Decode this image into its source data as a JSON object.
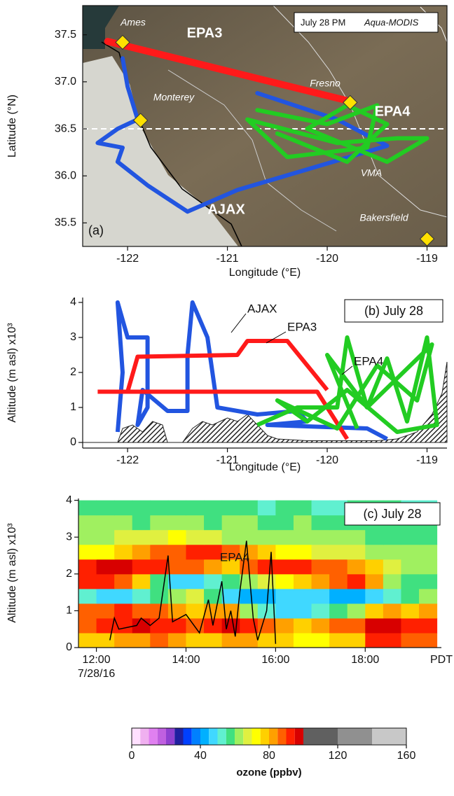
{
  "chart_data": [
    {
      "type": "map",
      "caption": [
        "July 28 PM",
        "Aqua-MODIS"
      ],
      "panel_label": "(a)",
      "xlabel": "Longitude (°E)",
      "ylabel": "Latitude (°N)",
      "xlim": [
        -122.45,
        -118.8
      ],
      "ylim": [
        35.25,
        37.81
      ],
      "xticks": [
        -122,
        -121,
        -120,
        -119
      ],
      "yticks": [
        35.5,
        {
          "value": 36,
          "label": "36.0"
        },
        36.5,
        {
          "value": 37,
          "label": "37.0"
        },
        37.5
      ],
      "reference_lat": 36.5,
      "sites": {
        "names": [
          "Ames",
          "Monterey",
          "Fresno",
          "VMA",
          "Bakersfield"
        ],
        "x": [
          -122.05,
          -121.87,
          -119.77,
          null,
          -119.0
        ],
        "values": [
          37.42,
          36.59,
          36.78,
          null,
          35.33
        ],
        "color": "#ffe000"
      },
      "series": [
        {
          "name": "EPA3",
          "color": "#ff1a1a",
          "x": [
            -122.2,
            -119.8
          ],
          "values": [
            37.43,
            36.8
          ]
        },
        {
          "name": "AJAX",
          "color": "#2255e0",
          "x": [
            -122.05,
            -122.0,
            -121.9,
            -122.1,
            -122.3,
            -122.05,
            -122.1,
            -121.8,
            -121.4,
            -120.9,
            -120.1,
            -119.4,
            -119.9,
            -120.7
          ],
          "values": [
            37.25,
            36.95,
            36.6,
            36.5,
            36.35,
            36.3,
            36.15,
            35.9,
            35.62,
            35.85,
            36.1,
            36.32,
            36.6,
            36.88
          ]
        },
        {
          "name": "EPA4",
          "color": "#22cc22",
          "x": [
            -120.7,
            -120.0,
            -119.5,
            -119.6,
            -120.4,
            -120.8,
            -119.9,
            -119.3,
            -119.0,
            -119.4,
            -120.2,
            -119.8,
            -119.4,
            -119.8,
            -120.5
          ],
          "values": [
            36.7,
            36.55,
            36.75,
            36.3,
            36.2,
            36.6,
            36.35,
            36.4,
            36.4,
            36.15,
            36.5,
            36.75,
            36.55,
            36.15,
            36.45
          ]
        }
      ]
    },
    {
      "type": "line",
      "panel_label": "(b) July 28",
      "xlabel": "Longitude (°E)",
      "ylabel": "Altitude (m asl) x10³",
      "xlim": [
        -122.45,
        -118.8
      ],
      "ylim": [
        -0.16,
        4.14
      ],
      "xticks": [
        -122,
        -121,
        -120,
        -119
      ],
      "yticks": [
        0,
        1,
        2,
        3,
        4
      ],
      "series": [
        {
          "name": "AJAX",
          "color": "#2255e0",
          "x": [
            -122.1,
            -122.05,
            -122.1,
            -122.0,
            -121.8,
            -121.8,
            -121.9,
            -121.85,
            -121.6,
            -121.4,
            -121.4,
            -121.35,
            -121.2,
            -121.1,
            -120.7,
            -120.3,
            -120.2,
            -120.6,
            -119.6,
            -119.4
          ],
          "values": [
            0.3,
            2,
            4,
            3,
            3,
            1,
            0.5,
            1.5,
            0.9,
            0.9,
            2.5,
            4,
            3,
            1,
            0.8,
            0.9,
            0.6,
            0.5,
            0.4,
            0.1
          ]
        },
        {
          "name": "EPA3",
          "color": "#ff1a1a",
          "x": [
            -120.0,
            -120.4,
            -120.8,
            -120.9,
            -121.9,
            -122.0,
            null,
            -122.3,
            -120.1,
            -119.8
          ],
          "values": [
            1.5,
            2.9,
            2.9,
            2.5,
            2.45,
            1.45,
            null,
            1.45,
            1.45,
            0.1
          ]
        },
        {
          "name": "EPA4",
          "color": "#22cc22",
          "x": [
            -120.7,
            -120.3,
            -119.9,
            -119.8,
            -119.6,
            -119.4,
            -119.2,
            -119.0,
            -118.9,
            -119.3,
            -119.8,
            -120.2,
            -120.5,
            -119.9,
            -119.5,
            -119.1,
            -118.95,
            -119.6,
            -120.0,
            -119.7
          ],
          "values": [
            0.5,
            1,
            1,
            3,
            1,
            2.4,
            0.6,
            3,
            0.5,
            0.3,
            1.5,
            0.6,
            1.2,
            0.4,
            2.2,
            1.2,
            2.8,
            1,
            2.5,
            0.4
          ]
        },
        {
          "color": "#222222",
          "fill": "hatch",
          "x": [
            -122.45,
            -122.1,
            -122.05,
            -121.95,
            -121.85,
            -121.75,
            -121.65,
            -121.6,
            -121.45,
            -121.35,
            -121.25,
            -121.15,
            -121.0,
            -120.9,
            -120.8,
            -120.7,
            -120.6,
            -120.5,
            -120.2,
            -119.9,
            -119.5,
            -119.3,
            -119.1,
            -118.95,
            -118.85,
            -118.8
          ],
          "values": [
            0,
            0,
            0.4,
            0.5,
            0.3,
            0.6,
            0.5,
            0,
            0,
            0.4,
            0.6,
            0.5,
            0.7,
            0.6,
            0.8,
            0.5,
            0.2,
            0.1,
            0.05,
            0.05,
            0.05,
            0.1,
            0.3,
            0.8,
            1.4,
            2.3
          ]
        }
      ]
    },
    {
      "type": "heatmap",
      "panel_label": "(c) July 28",
      "ylabel": "Altitude (m asl) x10³",
      "xlim": [
        11.6,
        19.7
      ],
      "ylim": [
        0,
        4.05
      ],
      "xticks": [
        {
          "value": 12,
          "label": "12:00"
        },
        {
          "value": 14,
          "label": "14:00"
        },
        {
          "value": 16,
          "label": "16:00"
        },
        {
          "value": 18,
          "label": "18:00"
        }
      ],
      "x_unit_label": "PDT",
      "date_label": "7/28/16",
      "yticks": [
        0,
        1,
        2,
        3,
        4
      ],
      "x_bins": [
        11.6,
        12.0,
        12.4,
        12.8,
        13.2,
        13.6,
        14.0,
        14.4,
        14.8,
        15.2,
        15.6,
        16.0,
        16.4,
        16.8,
        17.2,
        17.6,
        18.0,
        18.4,
        18.8,
        19.2,
        19.6
      ],
      "y_bins": [
        0,
        0.4,
        0.8,
        1.2,
        1.6,
        2.0,
        2.4,
        2.8,
        3.2,
        3.6,
        4.0
      ],
      "z": [
        [
          75,
          78,
          80,
          82,
          85,
          80,
          78,
          76,
          80,
          82,
          78,
          75,
          72,
          74,
          76,
          78,
          90,
          92,
          88,
          85
        ],
        [
          88,
          90,
          92,
          95,
          92,
          90,
          88,
          92,
          95,
          90,
          85,
          80,
          78,
          82,
          85,
          88,
          95,
          96,
          92,
          90
        ],
        [
          85,
          88,
          90,
          88,
          85,
          80,
          78,
          82,
          80,
          60,
          50,
          48,
          45,
          50,
          55,
          60,
          75,
          80,
          78,
          80
        ],
        [
          50,
          48,
          45,
          50,
          55,
          60,
          65,
          55,
          45,
          40,
          42,
          45,
          48,
          45,
          42,
          40,
          45,
          50,
          55,
          60
        ],
        [
          90,
          92,
          88,
          75,
          55,
          48,
          45,
          50,
          55,
          60,
          65,
          70,
          75,
          80,
          85,
          90,
          80,
          60,
          55,
          58
        ],
        [
          92,
          95,
          95,
          92,
          90,
          88,
          85,
          80,
          78,
          85,
          90,
          92,
          90,
          88,
          85,
          82,
          75,
          65,
          62,
          62
        ],
        [
          70,
          72,
          75,
          80,
          85,
          88,
          90,
          92,
          88,
          80,
          75,
          72,
          70,
          68,
          66,
          65,
          62,
          60,
          60,
          60
        ],
        [
          62,
          64,
          65,
          66,
          68,
          70,
          68,
          66,
          64,
          62,
          62,
          60,
          60,
          62,
          62,
          60,
          58,
          58,
          58,
          58
        ],
        [
          60,
          62,
          60,
          58,
          60,
          62,
          60,
          58,
          60,
          60,
          58,
          58,
          60,
          58,
          56,
          56,
          55,
          56,
          56,
          56
        ],
        [
          55,
          58,
          56,
          55,
          56,
          58,
          56,
          55,
          56,
          55,
          54,
          55,
          56,
          54,
          54,
          55,
          55,
          55,
          54,
          54
        ]
      ],
      "colorbar": {
        "label": "ozone (ppbv)",
        "lim": [
          0,
          160
        ],
        "ticks": [
          0,
          40,
          80,
          120,
          160
        ],
        "levels": [
          0,
          5,
          10,
          15,
          20,
          25,
          30,
          35,
          40,
          45,
          50,
          55,
          60,
          65,
          70,
          75,
          80,
          85,
          90,
          95,
          100,
          120,
          140,
          160
        ],
        "colors": [
          "#ffe0ff",
          "#f0b0f0",
          "#e080f0",
          "#c060e0",
          "#9040d0",
          "#2020a0",
          "#0040ff",
          "#0080ff",
          "#00b0ff",
          "#40d8ff",
          "#60f0d0",
          "#40e080",
          "#a0f060",
          "#e0f040",
          "#ffff00",
          "#ffd000",
          "#ffa000",
          "#ff6000",
          "#ff2000",
          "#d80000",
          "#606060",
          "#909090",
          "#c8c8c8"
        ]
      },
      "series": [
        {
          "name": "EPA4",
          "color": "#000000",
          "x": [
            12.3,
            12.4,
            12.5,
            12.9,
            13.0,
            13.2,
            13.4,
            13.6,
            13.7,
            14.0,
            14.3,
            14.5,
            14.6,
            14.8,
            14.9,
            15.0,
            15.1,
            15.2,
            15.35,
            15.5,
            15.6,
            15.8,
            15.9,
            16.0
          ],
          "values": [
            0.2,
            0.8,
            0.5,
            0.6,
            0.8,
            0.6,
            0.8,
            2.5,
            0.7,
            0.9,
            0.4,
            1.3,
            0.6,
            1.8,
            0.5,
            1.0,
            0.3,
            1.5,
            2.9,
            0.8,
            0.2,
            1.0,
            2.6,
            0.1
          ]
        }
      ]
    }
  ]
}
